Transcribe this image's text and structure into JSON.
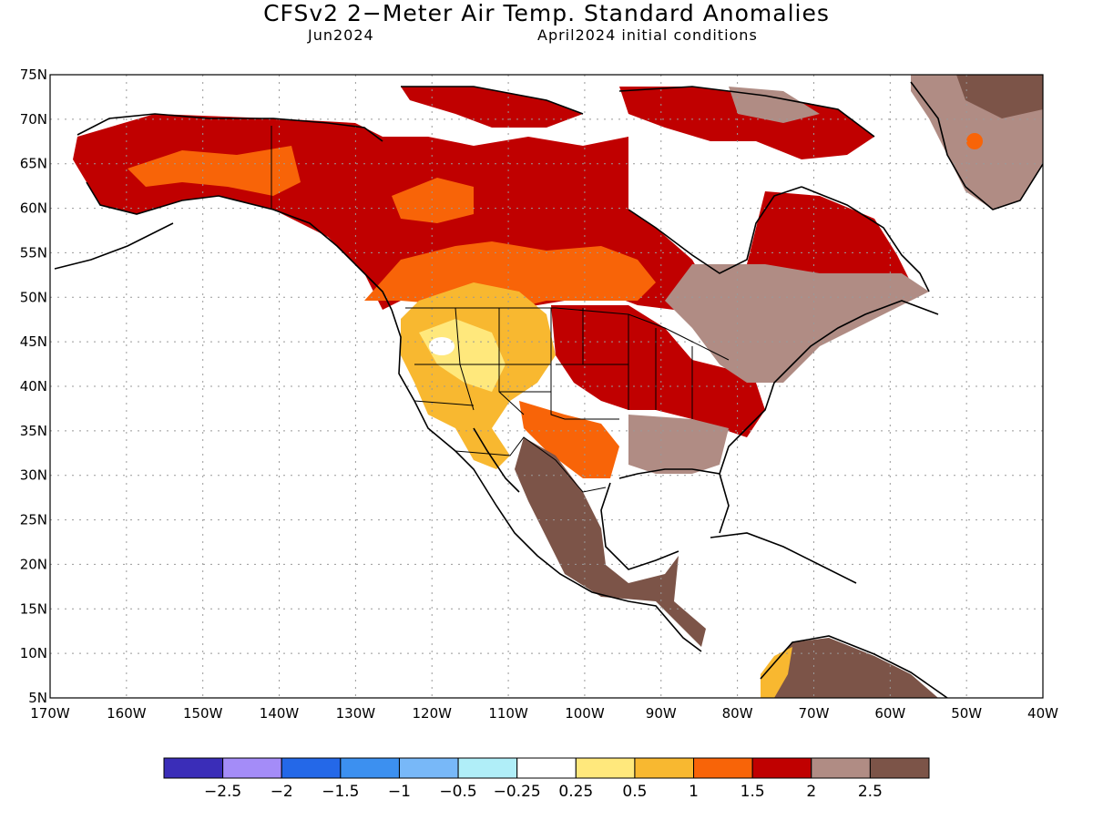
{
  "header": {
    "title": "CFSv2 2−Meter Air Temp. Standard Anomalies",
    "valid_month": "Jun2024",
    "initial_conditions": "April2024 initial conditions"
  },
  "map": {
    "lat_ticks": [
      "75N",
      "70N",
      "65N",
      "60N",
      "55N",
      "50N",
      "45N",
      "40N",
      "35N",
      "30N",
      "25N",
      "20N",
      "15N",
      "10N",
      "5N"
    ],
    "lon_ticks": [
      "170W",
      "160W",
      "150W",
      "140W",
      "130W",
      "120W",
      "110W",
      "100W",
      "90W",
      "80W",
      "70W",
      "60W",
      "50W",
      "40W"
    ],
    "lon_range": [
      -170,
      -40
    ],
    "lat_range": [
      5,
      75
    ],
    "grid": "dotted"
  },
  "colorbar": {
    "colors": [
      "#3a2db8",
      "#a48cf8",
      "#2468e8",
      "#3c90f0",
      "#78b8f8",
      "#b0eef8",
      "#ffffff",
      "#ffe87c",
      "#f8b830",
      "#f86408",
      "#c00000",
      "#b08c84",
      "#7c5448"
    ],
    "labels": [
      "−2.5",
      "−2",
      "−1.5",
      "−1",
      "−0.5",
      "−0.25",
      "0.25",
      "0.5",
      "1",
      "1.5",
      "2",
      "2.5"
    ]
  }
}
